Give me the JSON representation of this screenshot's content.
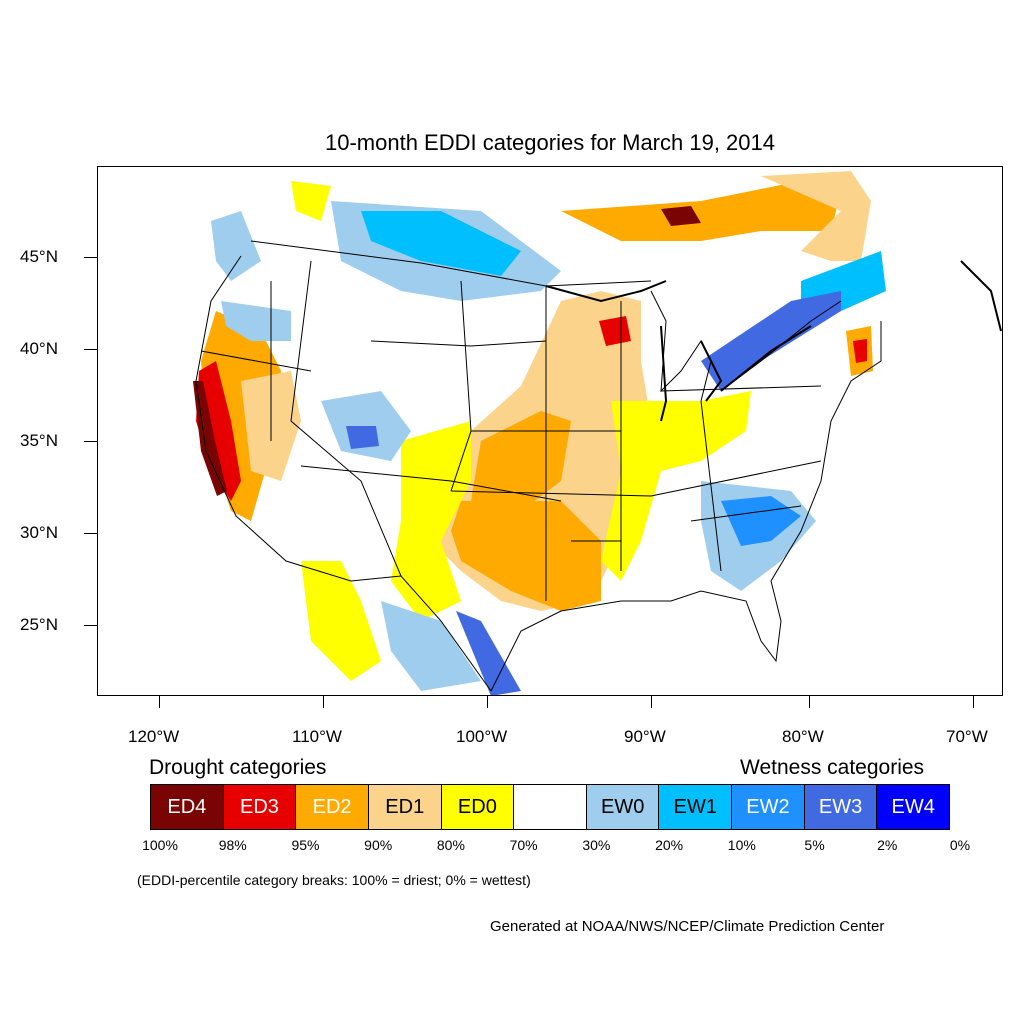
{
  "title": "10-month EDDI categories for March 19, 2014",
  "y_axis_labels": [
    "45°N",
    "40°N",
    "35°N",
    "30°N",
    "25°N"
  ],
  "x_axis_labels": [
    "120°W",
    "110°W",
    "100°W",
    "90°W",
    "80°W",
    "70°W"
  ],
  "legend": {
    "drought_heading": "Drought categories",
    "wetness_heading": "Wetness categories",
    "categories": [
      {
        "label": "ED4",
        "color": "#7a0403",
        "text_color": "#ffffff"
      },
      {
        "label": "ED3",
        "color": "#e60000",
        "text_color": "#ffffff"
      },
      {
        "label": "ED2",
        "color": "#ffaa00",
        "text_color": "#ffffff"
      },
      {
        "label": "ED1",
        "color": "#fcd38b",
        "text_color": "#000000"
      },
      {
        "label": "ED0",
        "color": "#ffff00",
        "text_color": "#000000"
      },
      {
        "label": "",
        "color": "#ffffff",
        "text_color": "#000000"
      },
      {
        "label": "EW0",
        "color": "#9fcdee",
        "text_color": "#000000"
      },
      {
        "label": "EW1",
        "color": "#00bfff",
        "text_color": "#000000"
      },
      {
        "label": "EW2",
        "color": "#1e90ff",
        "text_color": "#ffffff"
      },
      {
        "label": "EW3",
        "color": "#4169e1",
        "text_color": "#ffffff"
      },
      {
        "label": "EW4",
        "color": "#0000ff",
        "text_color": "#ffffff"
      }
    ],
    "breaks": [
      "100%",
      "98%",
      "95%",
      "90%",
      "80%",
      "70%",
      "30%",
      "20%",
      "10%",
      "5%",
      "2%",
      "0%"
    ]
  },
  "note": "(EDDI-percentile category breaks: 100% = driest; 0% = wettest)",
  "credit": "Generated at NOAA/NWS/NCEP/Climate Prediction Center"
}
